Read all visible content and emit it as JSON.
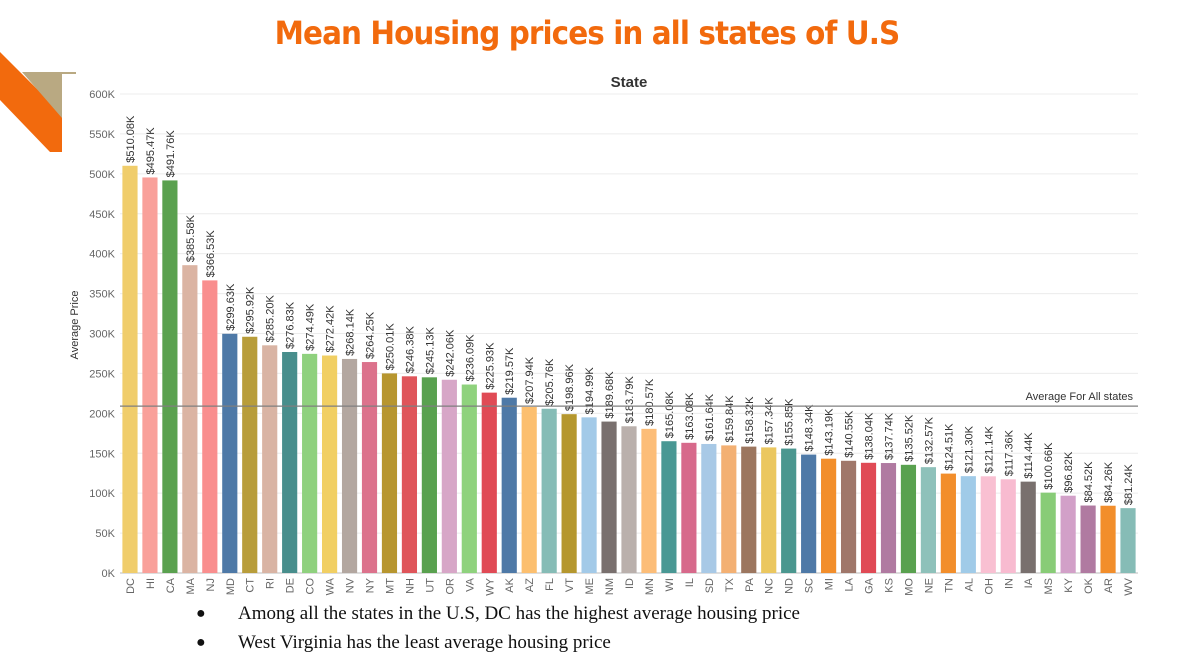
{
  "slide": {
    "title": "Mean Housing prices in all states of U.S",
    "bullets": [
      "Among all the states in the U.S, DC has the highest average housing price",
      "West Virginia has the least average housing price"
    ]
  },
  "chart_data": {
    "type": "bar",
    "title": "State",
    "xlabel": "",
    "ylabel": "Average Price",
    "ylim": [
      0,
      600000
    ],
    "yticks": [
      {
        "value": 0,
        "label": "0K"
      },
      {
        "value": 50000,
        "label": "50K"
      },
      {
        "value": 100000,
        "label": "100K"
      },
      {
        "value": 150000,
        "label": "150K"
      },
      {
        "value": 200000,
        "label": "200K"
      },
      {
        "value": 250000,
        "label": "250K"
      },
      {
        "value": 300000,
        "label": "300K"
      },
      {
        "value": 350000,
        "label": "350K"
      },
      {
        "value": 400000,
        "label": "400K"
      },
      {
        "value": 450000,
        "label": "450K"
      },
      {
        "value": 500000,
        "label": "500K"
      },
      {
        "value": 550000,
        "label": "550K"
      },
      {
        "value": 600000,
        "label": "600K"
      }
    ],
    "grid": true,
    "reference_line": {
      "label": "Average For All states",
      "value": 209000
    },
    "categories": [
      "DC",
      "HI",
      "CA",
      "MA",
      "NJ",
      "MD",
      "CT",
      "RI",
      "DE",
      "CO",
      "WA",
      "NV",
      "NY",
      "MT",
      "NH",
      "UT",
      "OR",
      "VA",
      "WY",
      "AK",
      "AZ",
      "FL",
      "VT",
      "ME",
      "NM",
      "ID",
      "MN",
      "WI",
      "IL",
      "SD",
      "TX",
      "PA",
      "NC",
      "ND",
      "SC",
      "MI",
      "LA",
      "GA",
      "KS",
      "MO",
      "NE",
      "TN",
      "AL",
      "OH",
      "IN",
      "IA",
      "MS",
      "KY",
      "OK",
      "AR",
      "WV"
    ],
    "values": [
      510080,
      495470,
      491760,
      385580,
      366530,
      299630,
      295920,
      285200,
      276830,
      274490,
      272420,
      268140,
      264250,
      250010,
      246380,
      245130,
      242060,
      236090,
      225930,
      219570,
      207940,
      205760,
      198960,
      194990,
      189680,
      183790,
      180570,
      165080,
      163080,
      161640,
      159840,
      158320,
      157340,
      155850,
      148340,
      143190,
      140550,
      138040,
      137740,
      135520,
      132570,
      124510,
      121300,
      121140,
      117360,
      114440,
      100660,
      96820,
      84520,
      84260,
      81240
    ],
    "data_labels": [
      "$510.08K",
      "$495.47K",
      "$491.76K",
      "$385.58K",
      "$366.53K",
      "$299.63K",
      "$295.92K",
      "$285.20K",
      "$276.83K",
      "$274.49K",
      "$272.42K",
      "$268.14K",
      "$264.25K",
      "$250.01K",
      "$246.38K",
      "$245.13K",
      "$242.06K",
      "$236.09K",
      "$225.93K",
      "$219.57K",
      "$207.94K",
      "$205.76K",
      "$198.96K",
      "$194.99K",
      "$189.68K",
      "$183.79K",
      "$180.57K",
      "$165.08K",
      "$163.08K",
      "$161.64K",
      "$159.84K",
      "$158.32K",
      "$157.34K",
      "$155.85K",
      "$148.34K",
      "$143.19K",
      "$140.55K",
      "$138.04K",
      "$137.74K",
      "$135.52K",
      "$132.57K",
      "$124.51K",
      "$121.30K",
      "$121.14K",
      "$117.36K",
      "$114.44K",
      "$100.66K",
      "$96.82K",
      "$84.52K",
      "$84.26K",
      "$81.24K"
    ],
    "colors": [
      "#f0cd6b",
      "#f9a09a",
      "#5aa14f",
      "#dbb4a3",
      "#f98e8e",
      "#4e79a7",
      "#b89d3a",
      "#d9b4a4",
      "#488e8c",
      "#8fd17e",
      "#f1cf63",
      "#b3a7a0",
      "#dc728c",
      "#b7962f",
      "#df555a",
      "#59a14f",
      "#d7a6c7",
      "#8fd27d",
      "#e04a55",
      "#4e79a7",
      "#fcbf6f",
      "#86bcb6",
      "#b5972e",
      "#a3cae8",
      "#79706e",
      "#bab0ac",
      "#fcbd78",
      "#499894",
      "#d7698b",
      "#a8c9e6",
      "#f3b073",
      "#9c765f",
      "#ebc75f",
      "#4b978f",
      "#4e79a7",
      "#f28e2b",
      "#a0776a",
      "#e04a55",
      "#b07aa1",
      "#59a14f",
      "#8ec1ba",
      "#f28e2b",
      "#a0cbe8",
      "#f9c0d2",
      "#f8bbd0",
      "#79706e",
      "#88cc77",
      "#d2a0c8",
      "#b07aa1",
      "#f28e2b",
      "#86bcb6"
    ]
  }
}
